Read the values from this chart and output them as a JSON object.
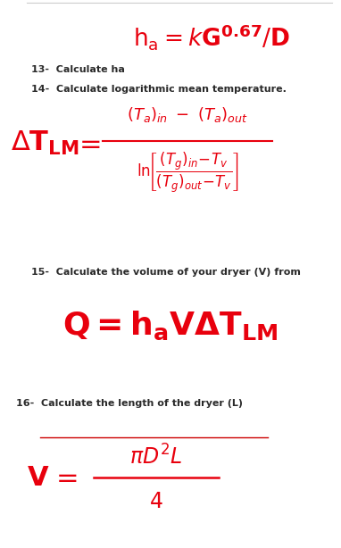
{
  "bg_color": "#ffffff",
  "red_color": "#e8000d",
  "black_color": "#2a2a2a",
  "label13": "13-  Calculate ha",
  "label14": "14-  Calculate logarithmic mean temperature.",
  "label15": "15-  Calculate the volume of your dryer (V) from",
  "label16": "16-  Calculate the length of the dryer (L)",
  "fig_width": 3.82,
  "fig_height": 6.14,
  "dpi": 100
}
